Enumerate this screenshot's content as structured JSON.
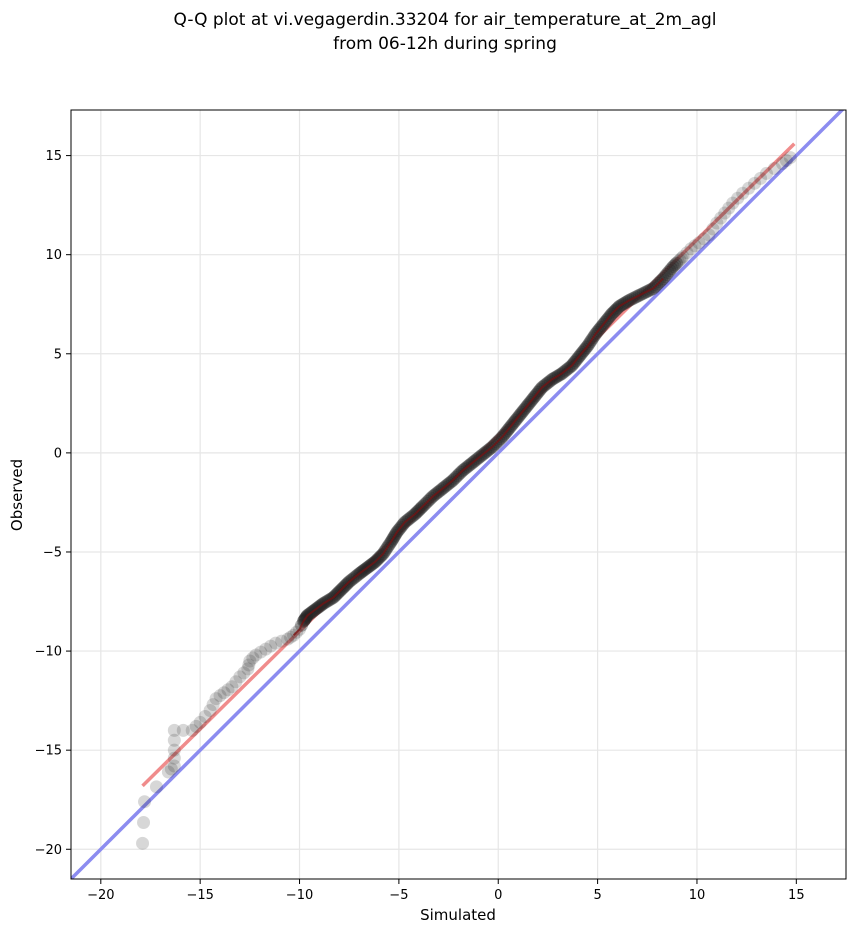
{
  "chart_data": {
    "type": "scatter",
    "title_line1": "Q-Q plot at vi.vegagerdin.33204 for air_temperature_at_2m_agl",
    "title_line2": "from 06-12h during spring",
    "xlabel": "Simulated",
    "ylabel": "Observed",
    "xlim": [
      -21.5,
      17.5
    ],
    "ylim": [
      -21.5,
      17.3
    ],
    "xticks": [
      -20,
      -15,
      -10,
      -5,
      0,
      5,
      10,
      15
    ],
    "yticks": [
      -20,
      -15,
      -10,
      -5,
      0,
      5,
      10,
      15
    ],
    "xtick_labels": [
      "−20",
      "−15",
      "−10",
      "−5",
      "0",
      "5",
      "10",
      "15"
    ],
    "ytick_labels": [
      "−20",
      "−15",
      "−10",
      "−5",
      "0",
      "5",
      "10",
      "15"
    ],
    "grid": true,
    "identity_line": {
      "color": "#8c8cf0",
      "x": [
        -21.5,
        17.5
      ],
      "y": [
        -21.5,
        17.5
      ]
    },
    "fit_line": {
      "color": "#f08c8c",
      "x": [
        -17.9,
        14.9
      ],
      "y": [
        -16.8,
        15.6
      ]
    },
    "points_color": "#222222",
    "points": [
      [
        -17.9,
        -19.7
      ],
      [
        -17.8,
        -17.6
      ],
      [
        -16.6,
        -16.1
      ],
      [
        -16.3,
        -15.8
      ],
      [
        -16.3,
        -15.0
      ],
      [
        -16.3,
        -14.0
      ],
      [
        -15.4,
        -14.0
      ],
      [
        -15.0,
        -13.6
      ],
      [
        -14.5,
        -13.0
      ],
      [
        -14.2,
        -12.4
      ],
      [
        -13.8,
        -12.1
      ],
      [
        -13.4,
        -11.8
      ],
      [
        -13.0,
        -11.3
      ],
      [
        -12.6,
        -10.9
      ],
      [
        -12.5,
        -10.5
      ],
      [
        -12.2,
        -10.2
      ],
      [
        -11.7,
        -9.9
      ],
      [
        -11.2,
        -9.6
      ],
      [
        -10.6,
        -9.4
      ],
      [
        -10.3,
        -9.2
      ],
      [
        -10.0,
        -8.9
      ],
      [
        -9.8,
        -8.5
      ],
      [
        -9.6,
        -8.2
      ],
      [
        -9.2,
        -7.9
      ],
      [
        -8.8,
        -7.6
      ],
      [
        -8.3,
        -7.3
      ],
      [
        -7.9,
        -6.9
      ],
      [
        -7.5,
        -6.5
      ],
      [
        -7.0,
        -6.1
      ],
      [
        -6.6,
        -5.8
      ],
      [
        -6.2,
        -5.5
      ],
      [
        -5.8,
        -5.1
      ],
      [
        -5.4,
        -4.5
      ],
      [
        -5.1,
        -4.0
      ],
      [
        -4.7,
        -3.5
      ],
      [
        -4.2,
        -3.1
      ],
      [
        -3.8,
        -2.7
      ],
      [
        -3.3,
        -2.2
      ],
      [
        -2.8,
        -1.8
      ],
      [
        -2.3,
        -1.4
      ],
      [
        -1.8,
        -0.9
      ],
      [
        -1.3,
        -0.5
      ],
      [
        -0.8,
        -0.1
      ],
      [
        -0.3,
        0.3
      ],
      [
        0.2,
        0.8
      ],
      [
        0.6,
        1.3
      ],
      [
        1.0,
        1.8
      ],
      [
        1.4,
        2.3
      ],
      [
        1.8,
        2.8
      ],
      [
        2.2,
        3.3
      ],
      [
        2.7,
        3.7
      ],
      [
        3.2,
        4.0
      ],
      [
        3.7,
        4.4
      ],
      [
        4.1,
        4.9
      ],
      [
        4.5,
        5.4
      ],
      [
        4.9,
        6.0
      ],
      [
        5.3,
        6.5
      ],
      [
        5.7,
        7.0
      ],
      [
        6.1,
        7.4
      ],
      [
        6.6,
        7.7
      ],
      [
        7.2,
        8.0
      ],
      [
        7.8,
        8.3
      ],
      [
        8.3,
        8.8
      ],
      [
        8.8,
        9.4
      ],
      [
        9.3,
        9.9
      ],
      [
        9.7,
        10.3
      ],
      [
        10.1,
        10.6
      ],
      [
        10.6,
        11.0
      ],
      [
        11.0,
        11.6
      ],
      [
        11.4,
        12.1
      ],
      [
        11.8,
        12.6
      ],
      [
        12.3,
        13.1
      ],
      [
        12.9,
        13.6
      ],
      [
        13.5,
        14.1
      ],
      [
        14.3,
        14.6
      ],
      [
        14.7,
        14.9
      ]
    ]
  }
}
